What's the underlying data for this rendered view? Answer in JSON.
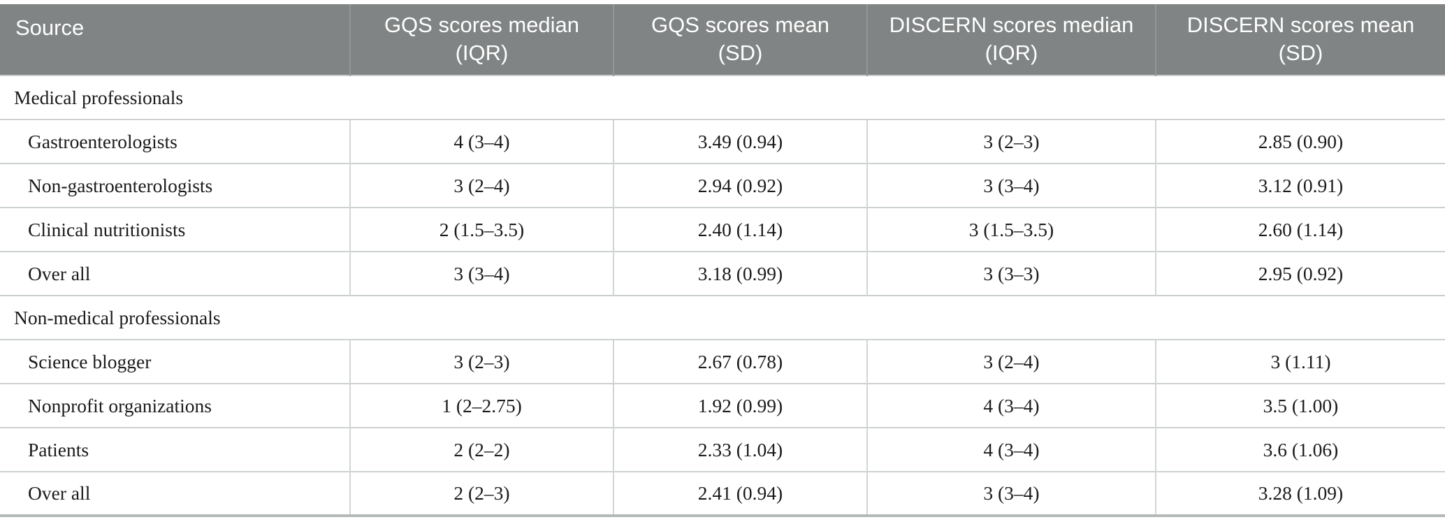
{
  "table": {
    "columns": [
      "Source",
      "GQS scores median (IQR)",
      "GQS scores mean (SD)",
      "DISCERN scores median (IQR)",
      "DISCERN scores mean (SD)"
    ],
    "sections": [
      {
        "label": "Medical professionals",
        "rows": [
          {
            "source": "Gastroenterologists",
            "gqs_median_iqr": "4 (3–4)",
            "gqs_mean_sd": "3.49 (0.94)",
            "discern_median_iqr": "3 (2–3)",
            "discern_mean_sd": "2.85 (0.90)"
          },
          {
            "source": "Non-gastroenterologists",
            "gqs_median_iqr": "3 (2–4)",
            "gqs_mean_sd": "2.94 (0.92)",
            "discern_median_iqr": "3 (3–4)",
            "discern_mean_sd": "3.12 (0.91)"
          },
          {
            "source": "Clinical nutritionists",
            "gqs_median_iqr": "2 (1.5–3.5)",
            "gqs_mean_sd": "2.40 (1.14)",
            "discern_median_iqr": "3 (1.5–3.5)",
            "discern_mean_sd": "2.60 (1.14)"
          },
          {
            "source": "Over all",
            "gqs_median_iqr": "3 (3–4)",
            "gqs_mean_sd": "3.18 (0.99)",
            "discern_median_iqr": "3 (3–3)",
            "discern_mean_sd": "2.95 (0.92)"
          }
        ]
      },
      {
        "label": "Non-medical professionals",
        "rows": [
          {
            "source": "Science blogger",
            "gqs_median_iqr": "3 (2–3)",
            "gqs_mean_sd": "2.67 (0.78)",
            "discern_median_iqr": "3 (2–4)",
            "discern_mean_sd": "3 (1.11)"
          },
          {
            "source": "Nonprofit organizations",
            "gqs_median_iqr": "1 (2–2.75)",
            "gqs_mean_sd": "1.92 (0.99)",
            "discern_median_iqr": "4 (3–4)",
            "discern_mean_sd": "3.5 (1.00)"
          },
          {
            "source": "Patients",
            "gqs_median_iqr": "2 (2–2)",
            "gqs_mean_sd": "2.33 (1.04)",
            "discern_median_iqr": "4 (3–4)",
            "discern_mean_sd": "3.6 (1.06)"
          },
          {
            "source": "Over all",
            "gqs_median_iqr": "2 (2–3)",
            "gqs_mean_sd": "2.41 (0.94)",
            "discern_median_iqr": "3 (3–4)",
            "discern_mean_sd": "3.28 (1.09)"
          }
        ]
      }
    ],
    "colors": {
      "header_background": "#818484",
      "header_text": "#ffffff",
      "body_text": "#1b1b1b",
      "row_divider": "#cdd0d0",
      "bottom_rule": "#b5b8b8"
    }
  }
}
